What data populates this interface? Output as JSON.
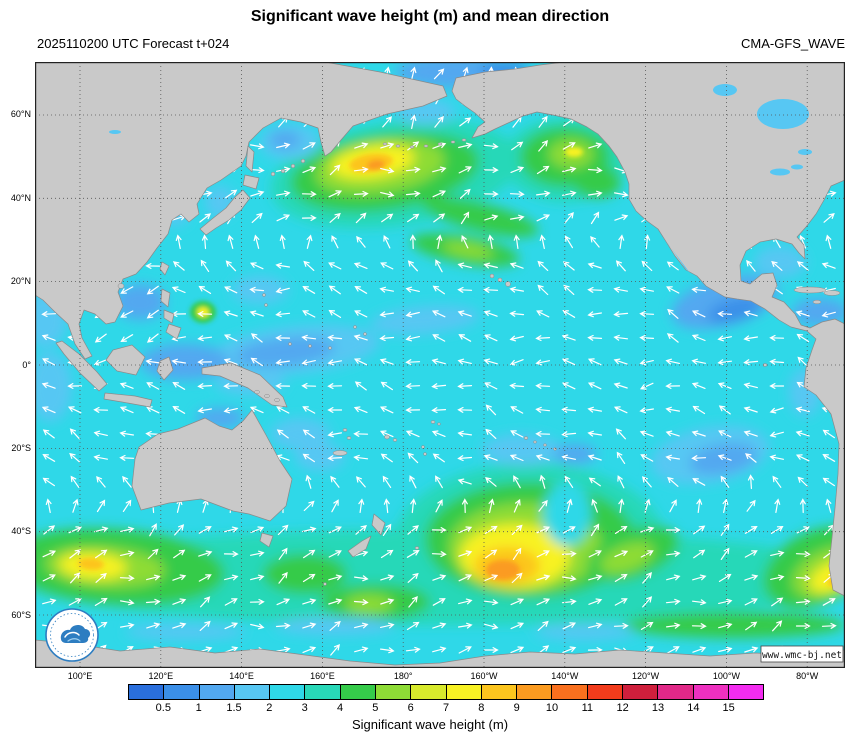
{
  "header": {
    "title": "Significant wave height (m) and mean direction",
    "subtitle_left": "2025110200 UTC Forecast t+024",
    "subtitle_right": "CMA-GFS_WAVE"
  },
  "map": {
    "watermark": "www.wmc-bj.net",
    "land_color": "#c9c9c9",
    "coast_color": "#8a8a8a",
    "grid_color": "#555555",
    "frame_color": "#222222",
    "arrow_color": "#ffffff",
    "lat_ticks": [
      {
        "label": "60°N",
        "lat": 60
      },
      {
        "label": "40°N",
        "lat": 40
      },
      {
        "label": "20°N",
        "lat": 20
      },
      {
        "label": "0°",
        "lat": 0
      },
      {
        "label": "20°S",
        "lat": -20
      },
      {
        "label": "40°S",
        "lat": -40
      },
      {
        "label": "60°S",
        "lat": -60
      }
    ],
    "lon_ticks": [
      {
        "label": "100°E",
        "lon": 100
      },
      {
        "label": "120°E",
        "lon": 120
      },
      {
        "label": "140°E",
        "lon": 140
      },
      {
        "label": "160°E",
        "lon": 160
      },
      {
        "label": "180°",
        "lon": 180
      },
      {
        "label": "160°W",
        "lon": 200
      },
      {
        "label": "140°W",
        "lon": 220
      },
      {
        "label": "120°W",
        "lon": 240
      },
      {
        "label": "100°W",
        "lon": 260
      },
      {
        "label": "80°W",
        "lon": 280
      }
    ]
  },
  "colorbar": {
    "label": "Significant wave height (m)",
    "tick_labels": [
      "0.5",
      "1",
      "1.5",
      "2",
      "3",
      "4",
      "5",
      "6",
      "7",
      "8",
      "9",
      "10",
      "11",
      "12",
      "13",
      "14",
      "15"
    ],
    "colors": [
      "#2a6fdd",
      "#3b8fe8",
      "#52a8f0",
      "#57c7f3",
      "#2fd8e8",
      "#28d8b8",
      "#35cb4a",
      "#8edc36",
      "#d8ea2c",
      "#f8f224",
      "#fcc51e",
      "#fb9b20",
      "#f9701e",
      "#f23c1c",
      "#cf1f3c",
      "#e12888",
      "#ee30c0",
      "#f32cf0"
    ]
  },
  "chart_data": {
    "type": "heatmap",
    "title": "Significant wave height (m) and mean direction",
    "model": "CMA-GFS_WAVE",
    "init_time": "2025110200 UTC",
    "forecast_step": "t+024",
    "units": "m",
    "projection": "Pacific-centered lat/lon grid",
    "lon_range": "about 89°E eastward across the dateline to about 71°W",
    "lat_range": [
      "73°S",
      "73°N"
    ],
    "scale_boundaries_m": [
      0.5,
      1,
      1.5,
      2,
      3,
      4,
      5,
      6,
      7,
      8,
      9,
      10,
      11,
      12,
      13,
      14,
      15
    ],
    "scale_colors": [
      "#2a6fdd",
      "#3b8fe8",
      "#52a8f0",
      "#57c7f3",
      "#2fd8e8",
      "#28d8b8",
      "#35cb4a",
      "#8edc36",
      "#d8ea2c",
      "#f8f224",
      "#fcc51e",
      "#fb9b20",
      "#f9701e",
      "#f23c1c",
      "#cf1f3c",
      "#e12888",
      "#ee30c0",
      "#f32cf0"
    ],
    "overlay": "white arrows on a regular grid show mean wave direction",
    "features": [
      {
        "region": "Northwest Pacific storm (~47°N, 172°E)",
        "max_hs_m": 8
      },
      {
        "region": "Gulf of Alaska swell (~50°N, 145°W)",
        "max_hs_m": 6
      },
      {
        "region": "Tropical system east of the Philippines (~13°N, 127°E)",
        "max_hs_m": 6
      },
      {
        "region": "South Indian Ocean storm belt (~50°S, 100°E)",
        "max_hs_m": 7
      },
      {
        "region": "Southeast Pacific storm (~52°S, 155°W)",
        "max_hs_m": 9
      },
      {
        "region": "Off southern Chile (~50°S, 78°W)",
        "max_hs_m": 7
      },
      {
        "region": "Tropical Pacific background",
        "hs_m": "1-3"
      },
      {
        "region": "Southern Ocean belt 40-65°S",
        "hs_m": "4-8"
      }
    ]
  }
}
